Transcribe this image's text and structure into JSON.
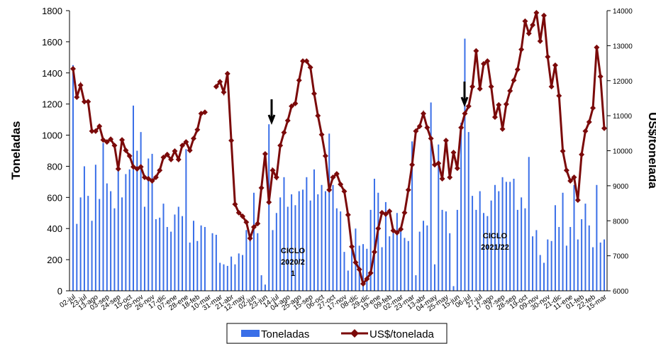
{
  "chart_data": {
    "type": "bar-line",
    "y_label": "Toneladas",
    "y2_label": "US$/tonelada",
    "categories": [
      "02-jul",
      null,
      null,
      "23-jul",
      null,
      null,
      "13-ago",
      null,
      null,
      "03-sep",
      null,
      null,
      "24-sep",
      null,
      null,
      "15-oct",
      null,
      null,
      "05-nov",
      null,
      null,
      "26-nov",
      null,
      null,
      "17-dic",
      null,
      null,
      "07-ene",
      null,
      null,
      "28-ene",
      null,
      null,
      "18-feb",
      null,
      null,
      "10-mar",
      null,
      null,
      "31-mar",
      null,
      null,
      "21-abr",
      null,
      null,
      "12-may",
      null,
      null,
      "02-jun",
      null,
      null,
      "23-jun",
      null,
      null,
      "14-jul",
      null,
      null,
      "04-ago",
      null,
      null,
      "25-ago",
      null,
      null,
      "15-sep",
      null,
      null,
      "06-oct",
      null,
      null,
      "27-oct",
      null,
      null,
      "17-nov",
      null,
      null,
      "08-dic",
      null,
      null,
      "29-dic",
      null,
      null,
      "19-ene",
      null,
      null,
      "09-feb",
      null,
      null,
      "02-mar",
      null,
      null,
      "23-mar",
      null,
      null,
      "13-abr",
      null,
      null,
      "04-may",
      null,
      null,
      "25-may",
      null,
      null,
      "15-jun",
      null,
      null,
      "06-jul",
      null,
      null,
      "27-jul",
      null,
      null,
      "17-ago",
      null,
      null,
      "07-sep",
      null,
      null,
      "28-sep",
      null,
      null,
      "19-oct",
      null,
      null,
      "09-nov",
      null,
      null,
      "30-nov",
      null,
      null,
      "21-dic",
      null,
      null,
      "11-ene",
      null,
      null,
      "01-feb",
      null,
      null,
      "22-feb",
      null,
      null,
      "15-mar"
    ],
    "series": [
      {
        "name": "Toneladas",
        "color": "#3a6fe8",
        "kind": "bar",
        "values": [
          1450,
          430,
          600,
          800,
          610,
          450,
          810,
          590,
          950,
          690,
          640,
          530,
          780,
          600,
          750,
          780,
          1190,
          900,
          1020,
          540,
          850,
          880,
          460,
          470,
          560,
          410,
          380,
          490,
          540,
          480,
          910,
          310,
          450,
          320,
          420,
          410,
          0,
          370,
          360,
          180,
          170,
          160,
          220,
          170,
          240,
          230,
          390,
          330,
          630,
          370,
          100,
          40,
          1070,
          390,
          500,
          600,
          730,
          540,
          620,
          550,
          640,
          650,
          730,
          580,
          780,
          620,
          680,
          640,
          1010,
          680,
          530,
          510,
          250,
          130,
          280,
          400,
          290,
          300,
          270,
          520,
          720,
          630,
          280,
          570,
          350,
          370,
          500,
          400,
          340,
          320,
          960,
          100,
          380,
          450,
          420,
          1210,
          170,
          940,
          520,
          510,
          370,
          30,
          520,
          1080,
          1620,
          1020,
          610,
          520,
          640,
          500,
          480,
          580,
          680,
          640,
          730,
          700,
          700,
          720,
          520,
          600,
          530,
          860,
          350,
          390,
          230,
          180,
          330,
          320,
          550,
          410,
          630,
          290,
          410,
          680,
          330,
          460,
          560,
          420,
          280,
          680,
          310,
          330
        ]
      },
      {
        "name": "US$/tonelada",
        "color": "#7b0a0a",
        "kind": "line",
        "axis": "y2",
        "values": [
          12340,
          11530,
          11870,
          11400,
          11400,
          10560,
          10560,
          10700,
          10310,
          10250,
          10330,
          10150,
          9480,
          10310,
          10010,
          9850,
          9540,
          9480,
          9540,
          9240,
          9200,
          9140,
          9240,
          9440,
          9810,
          9890,
          9750,
          9990,
          9750,
          10150,
          10250,
          10010,
          10350,
          10600,
          11060,
          11100,
          null,
          null,
          11830,
          11970,
          11670,
          12200,
          10290,
          8470,
          8230,
          8130,
          7960,
          7500,
          7820,
          7920,
          8940,
          9910,
          8530,
          9440,
          9240,
          10150,
          10520,
          10860,
          11270,
          11350,
          12010,
          12560,
          12560,
          12380,
          11630,
          11000,
          10460,
          9850,
          8880,
          9240,
          9340,
          9040,
          8840,
          8170,
          7260,
          6810,
          6610,
          6200,
          6340,
          6510,
          7110,
          7780,
          8230,
          8190,
          8270,
          7720,
          7660,
          7760,
          8230,
          8880,
          9600,
          10560,
          10700,
          11060,
          10660,
          10350,
          9600,
          9640,
          9200,
          10290,
          9240,
          9950,
          9500,
          10660,
          11060,
          11270,
          11830,
          12850,
          11770,
          12480,
          12560,
          11830,
          10960,
          11310,
          10620,
          11330,
          11710,
          12010,
          12320,
          12890,
          13700,
          13350,
          13590,
          13940,
          13130,
          13860,
          12680,
          11830,
          12440,
          11570,
          9990,
          9440,
          9140,
          9240,
          8590,
          9890,
          10560,
          10820,
          11220,
          12950,
          12120,
          10640
        ]
      }
    ],
    "ylim": [
      0,
      1800
    ],
    "yticks": [
      0,
      200,
      400,
      600,
      800,
      1000,
      1200,
      1400,
      1600,
      1800
    ],
    "y2lim": [
      6000,
      14000
    ],
    "y2ticks": [
      6000,
      7000,
      8000,
      9000,
      10000,
      11000,
      12000,
      13000,
      14000
    ],
    "annotations": [
      [
        "CICLO",
        "2020/2",
        "1"
      ],
      [
        "CICLO",
        "2021/22"
      ]
    ]
  }
}
